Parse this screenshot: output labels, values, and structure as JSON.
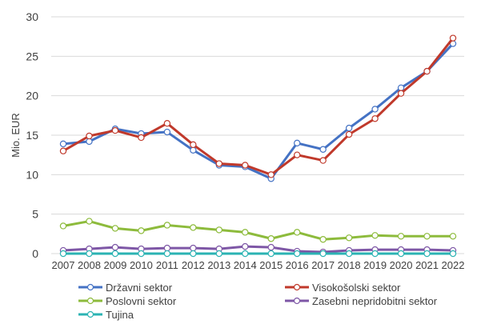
{
  "chart_data": {
    "type": "line",
    "x": [
      "2007",
      "2008",
      "2009",
      "2010",
      "2011",
      "2012",
      "2013",
      "2014",
      "2015",
      "2016",
      "2017",
      "2018",
      "2019",
      "2020",
      "2021",
      "2022"
    ],
    "ylabel": "Mio. EUR",
    "ylim": [
      0,
      30
    ],
    "yticks": [
      0,
      5,
      10,
      15,
      20,
      25,
      30
    ],
    "grid": true,
    "legend_position": "bottom",
    "series": [
      {
        "name": "Državni sektor",
        "color": "#4472c4",
        "values": [
          13.9,
          14.2,
          15.8,
          15.2,
          15.4,
          13.1,
          11.2,
          11.0,
          9.5,
          14.0,
          13.2,
          15.9,
          18.3,
          21.0,
          23.1,
          26.6
        ]
      },
      {
        "name": "Visokošolski sektor",
        "color": "#c0392b",
        "values": [
          13.0,
          14.9,
          15.6,
          14.7,
          16.5,
          13.8,
          11.4,
          11.2,
          10.0,
          12.5,
          11.8,
          15.1,
          17.1,
          20.3,
          23.1,
          27.3
        ]
      },
      {
        "name": "Poslovni sektor",
        "color": "#8dbb3c",
        "values": [
          3.5,
          4.1,
          3.2,
          2.9,
          3.6,
          3.3,
          3.0,
          2.7,
          1.9,
          2.7,
          1.8,
          2.0,
          2.3,
          2.2,
          2.2,
          2.2
        ]
      },
      {
        "name": "Zasebni nepridobitni sektor",
        "color": "#7e57a6",
        "values": [
          0.4,
          0.6,
          0.8,
          0.6,
          0.7,
          0.7,
          0.6,
          0.9,
          0.8,
          0.3,
          0.2,
          0.4,
          0.5,
          0.5,
          0.5,
          0.4
        ]
      },
      {
        "name": "Tujina",
        "color": "#2bb3b3",
        "values": [
          0.0,
          0.0,
          0.0,
          0.0,
          0.0,
          0.0,
          0.0,
          0.0,
          0.0,
          0.0,
          0.0,
          0.0,
          0.0,
          0.0,
          0.0,
          0.0
        ]
      }
    ]
  }
}
